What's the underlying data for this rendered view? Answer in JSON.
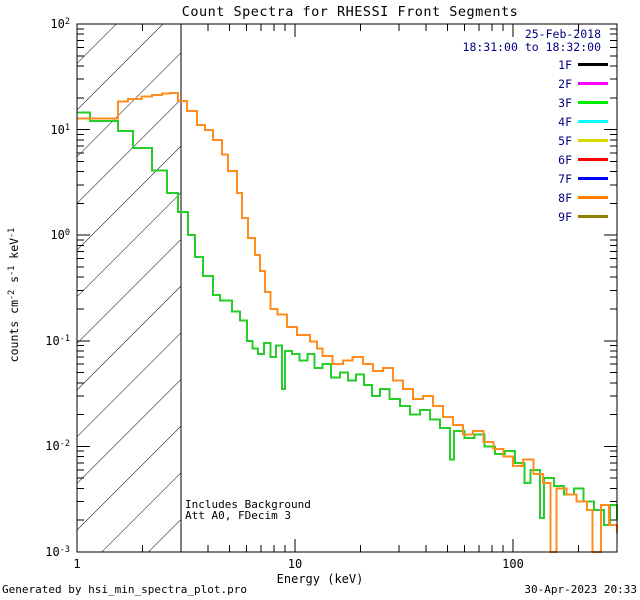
{
  "title": "Count Spectra for RHESSI Front Segments",
  "header": {
    "date": "25-Feb-2018",
    "time_range": "18:31:00 to 18:32:00"
  },
  "colors": {
    "annotation_blue": "#000085",
    "axis_black": "#000000",
    "background": "#ffffff"
  },
  "legend": {
    "items": [
      {
        "label": "1F",
        "color": "#000000"
      },
      {
        "label": "2F",
        "color": "#ff00ff"
      },
      {
        "label": "3F",
        "color": "#00ee00"
      },
      {
        "label": "4F",
        "color": "#00ffff"
      },
      {
        "label": "5F",
        "color": "#d9d900"
      },
      {
        "label": "6F",
        "color": "#ff0000"
      },
      {
        "label": "7F",
        "color": "#0000ff"
      },
      {
        "label": "8F",
        "color": "#ff8000"
      },
      {
        "label": "9F",
        "color": "#8f8000"
      }
    ]
  },
  "annotations": {
    "line1": "Includes Background",
    "line2": "Att A0, FDecim 3"
  },
  "footer": {
    "left": "Generated by hsi_min_spectra_plot.pro",
    "right": "30-Apr-2023 20:33"
  },
  "axes": {
    "x": {
      "label": "Energy (keV)",
      "ticks": [
        "1",
        "10",
        "100"
      ]
    },
    "y": {
      "label_parts": {
        "p1": "counts cm",
        "e1": "-2",
        "p2": " s",
        "e2": "-1",
        "p3": " keV",
        "e3": "-1"
      },
      "ticks": [
        {
          "base": "10",
          "exp": "2"
        },
        {
          "base": "10",
          "exp": "1"
        },
        {
          "base": "10",
          "exp": "0"
        },
        {
          "base": "10",
          "exp": "-1"
        },
        {
          "base": "10",
          "exp": "-2"
        },
        {
          "base": "10",
          "exp": "-3"
        }
      ]
    }
  },
  "chart_data": {
    "type": "line",
    "subtype": "step-histogram",
    "title": "Count Spectra for RHESSI Front Segments",
    "xlabel": "Energy (keV)",
    "ylabel": "counts cm^-2 s^-1 keV^-1",
    "x_scale": "log",
    "y_scale": "log",
    "x_range": [
      1,
      300
    ],
    "y_range": [
      0.001,
      100
    ],
    "hatched_region_kev": [
      1,
      3
    ],
    "legend_position": "top-right",
    "grid": false,
    "series": [
      {
        "name": "3F",
        "color": "#27ce27",
        "points": [
          [
            1.0,
            14.5
          ],
          [
            1.15,
            12.0
          ],
          [
            1.54,
            9.7
          ],
          [
            1.81,
            6.7
          ],
          [
            2.21,
            4.1
          ],
          [
            2.59,
            2.5
          ],
          [
            2.91,
            1.65
          ],
          [
            3.23,
            1.0
          ],
          [
            3.48,
            0.62
          ],
          [
            3.79,
            0.41
          ],
          [
            4.2,
            0.27
          ],
          [
            4.52,
            0.24
          ],
          [
            5.14,
            0.19
          ],
          [
            5.6,
            0.155
          ],
          [
            6.03,
            0.1
          ],
          [
            6.4,
            0.085
          ],
          [
            6.76,
            0.075
          ],
          [
            7.2,
            0.095
          ],
          [
            7.7,
            0.07
          ],
          [
            8.2,
            0.09
          ],
          [
            8.7,
            0.035
          ],
          [
            9.0,
            0.08
          ],
          [
            9.7,
            0.075
          ],
          [
            10.5,
            0.065
          ],
          [
            11.4,
            0.075
          ],
          [
            12.3,
            0.055
          ],
          [
            13.4,
            0.06
          ],
          [
            14.6,
            0.045
          ],
          [
            16.1,
            0.05
          ],
          [
            17.5,
            0.042
          ],
          [
            19.0,
            0.048
          ],
          [
            20.7,
            0.038
          ],
          [
            22.6,
            0.03
          ],
          [
            24.5,
            0.035
          ],
          [
            27.2,
            0.028
          ],
          [
            30.3,
            0.024
          ],
          [
            33.7,
            0.02
          ],
          [
            37.4,
            0.022
          ],
          [
            41.6,
            0.018
          ],
          [
            46.2,
            0.015
          ],
          [
            51.4,
            0.0075
          ],
          [
            53.6,
            0.014
          ],
          [
            59.8,
            0.012
          ],
          [
            66.6,
            0.013
          ],
          [
            74.2,
            0.01
          ],
          [
            82.5,
            0.0085
          ],
          [
            91.8,
            0.009
          ],
          [
            102,
            0.007
          ],
          [
            113,
            0.0045
          ],
          [
            120,
            0.006
          ],
          [
            133,
            0.0021
          ],
          [
            139,
            0.005
          ],
          [
            154,
            0.0042
          ],
          [
            171,
            0.0035
          ],
          [
            190,
            0.004
          ],
          [
            211,
            0.003
          ],
          [
            235,
            0.0025
          ],
          [
            261,
            0.0018
          ],
          [
            279,
            0.0028
          ],
          [
            300,
            0.002
          ]
        ]
      },
      {
        "name": "8F",
        "color": "#ff8c1e",
        "points": [
          [
            1.0,
            12.8
          ],
          [
            1.54,
            18.5
          ],
          [
            1.71,
            19.5
          ],
          [
            1.98,
            20.5
          ],
          [
            2.21,
            21.3
          ],
          [
            2.45,
            22.0
          ],
          [
            2.67,
            22.3
          ],
          [
            2.91,
            18.7
          ],
          [
            3.19,
            15.0
          ],
          [
            3.55,
            11.1
          ],
          [
            3.86,
            9.9
          ],
          [
            4.2,
            8.0
          ],
          [
            4.63,
            5.8
          ],
          [
            4.93,
            4.06
          ],
          [
            5.42,
            2.5
          ],
          [
            5.7,
            1.45
          ],
          [
            6.08,
            0.94
          ],
          [
            6.55,
            0.65
          ],
          [
            6.9,
            0.46
          ],
          [
            7.3,
            0.29
          ],
          [
            7.7,
            0.2
          ],
          [
            8.3,
            0.178
          ],
          [
            9.2,
            0.135
          ],
          [
            10.2,
            0.114
          ],
          [
            11.7,
            0.098
          ],
          [
            12.6,
            0.085
          ],
          [
            13.4,
            0.072
          ],
          [
            14.9,
            0.06
          ],
          [
            16.6,
            0.065
          ],
          [
            18.4,
            0.07
          ],
          [
            20.5,
            0.06
          ],
          [
            22.8,
            0.052
          ],
          [
            25.3,
            0.055
          ],
          [
            28.1,
            0.042
          ],
          [
            31.3,
            0.035
          ],
          [
            34.8,
            0.028
          ],
          [
            38.7,
            0.03
          ],
          [
            43.0,
            0.024
          ],
          [
            47.8,
            0.019
          ],
          [
            53.1,
            0.016
          ],
          [
            59.1,
            0.013
          ],
          [
            65.7,
            0.014
          ],
          [
            73.1,
            0.011
          ],
          [
            81.2,
            0.0095
          ],
          [
            90.3,
            0.008
          ],
          [
            100,
            0.0065
          ],
          [
            111,
            0.0075
          ],
          [
            124,
            0.0055
          ],
          [
            137,
            0.0045
          ],
          [
            149,
            0.00095
          ],
          [
            158,
            0.004
          ],
          [
            176,
            0.0035
          ],
          [
            196,
            0.003
          ],
          [
            218,
            0.0025
          ],
          [
            232,
            0.00095
          ],
          [
            253,
            0.0028
          ],
          [
            275,
            0.0018
          ],
          [
            300,
            0.0015
          ]
        ]
      }
    ]
  }
}
